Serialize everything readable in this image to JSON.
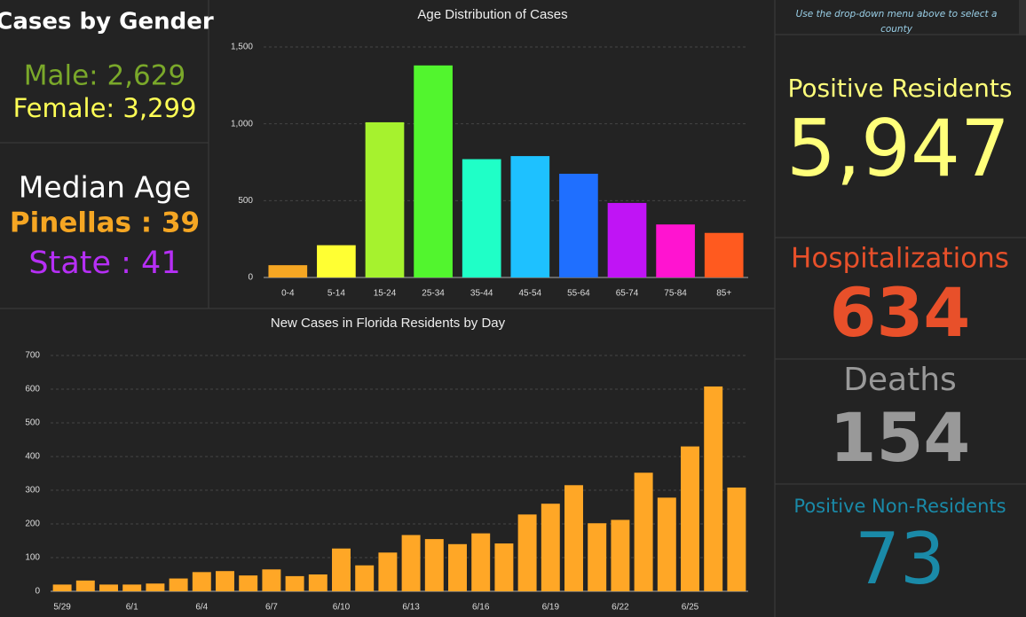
{
  "panels": {
    "gender": {
      "title": "Cases by Gender",
      "male": "Male: 2,629",
      "female": "Female: 3,299"
    },
    "median_age": {
      "title": "Median Age",
      "county": "Pinellas : 39",
      "state": "State : 41"
    },
    "note": [
      "Use the drop-down menu above to select a",
      "county"
    ],
    "stats": [
      {
        "label": "Positive Residents",
        "value": "5,947"
      },
      {
        "label": "Hospitalizations",
        "value": "634"
      },
      {
        "label": "Deaths",
        "value": "154"
      },
      {
        "label": "Positive Non-Residents",
        "value": "73"
      }
    ]
  },
  "chart_data": [
    {
      "type": "bar",
      "title": "Age Distribution of Cases",
      "categories": [
        "0-4",
        "5-14",
        "15-24",
        "25-34",
        "35-44",
        "45-54",
        "55-64",
        "65-74",
        "75-84",
        "85+"
      ],
      "values": [
        80,
        210,
        1010,
        1380,
        770,
        790,
        675,
        485,
        345,
        290
      ],
      "colors": [
        "#f5a623",
        "#ffff33",
        "#a6f22e",
        "#52f52e",
        "#1fffc7",
        "#1ec1ff",
        "#1f6fff",
        "#c014f5",
        "#ff14d0",
        "#ff5a1f"
      ],
      "ylim": [
        0,
        1500
      ],
      "yticks": [
        0,
        500,
        {
          "value": 1000,
          "label": "1,000"
        },
        {
          "value": 1500,
          "label": "1,500"
        }
      ],
      "grid": true
    },
    {
      "type": "bar",
      "title": "New Cases in Florida Residents by Day",
      "categories": [
        "5/29",
        null,
        null,
        "6/1",
        null,
        null,
        "6/4",
        null,
        null,
        "6/7",
        null,
        null,
        "6/10",
        null,
        null,
        "6/13",
        null,
        null,
        "6/16",
        null,
        null,
        "6/19",
        null,
        null,
        "6/22",
        null,
        null,
        "6/25",
        null,
        null
      ],
      "values": [
        20,
        32,
        20,
        20,
        23,
        38,
        57,
        60,
        47,
        65,
        45,
        50,
        127,
        77,
        115,
        167,
        155,
        140,
        172,
        142,
        228,
        260,
        315,
        202,
        212,
        352,
        278,
        430,
        608,
        308
      ],
      "color": "#ffa726",
      "ylim": [
        0,
        700
      ],
      "yticks": [
        0,
        100,
        200,
        300,
        400,
        500,
        600,
        700
      ],
      "grid": true
    }
  ]
}
